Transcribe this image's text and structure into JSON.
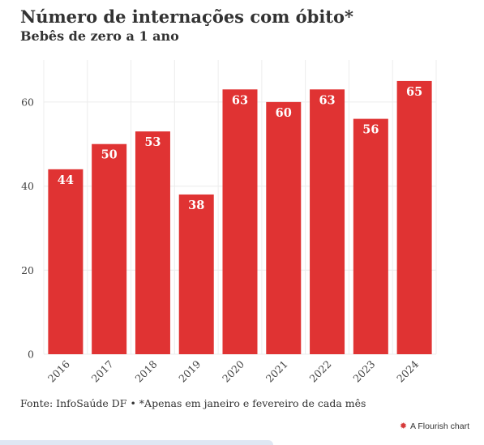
{
  "header": {
    "title": "Número de internações com óbito*",
    "subtitle": "Bebês de zero a 1 ano"
  },
  "footer": {
    "source": "Fonte: InfoSaúde DF",
    "separator": "•",
    "note": "*Apenas em janeiro e fevereiro de cada mês"
  },
  "branding": {
    "label": "A Flourish chart",
    "icon": "flourish-logo-icon"
  },
  "colors": {
    "bar": "#e03333",
    "grid": "#ececec",
    "text": "#333333",
    "label": "#ffffff"
  },
  "chart_data": {
    "type": "bar",
    "title": "Número de internações com óbito*",
    "subtitle": "Bebês de zero a 1 ano",
    "xlabel": "",
    "ylabel": "",
    "categories": [
      "2016",
      "2017",
      "2018",
      "2019",
      "2020",
      "2021",
      "2022",
      "2023",
      "2024"
    ],
    "values": [
      44,
      50,
      53,
      38,
      63,
      60,
      63,
      56,
      65
    ],
    "ylim": [
      0,
      70
    ],
    "yticks": [
      0,
      20,
      40,
      60
    ],
    "grid": true,
    "data_labels": true
  }
}
